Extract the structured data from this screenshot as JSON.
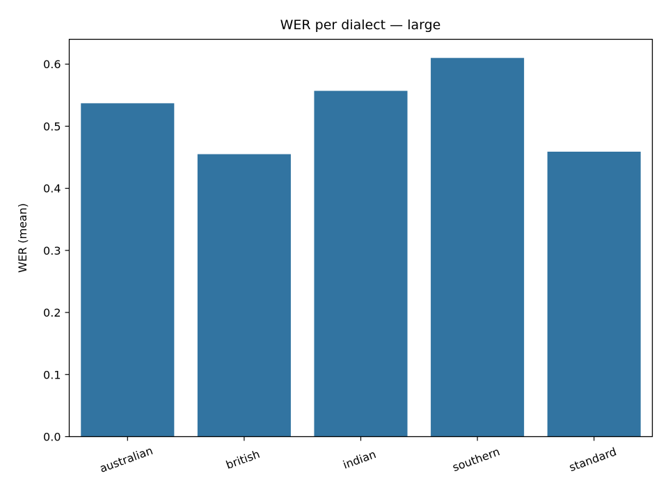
{
  "chart_data": {
    "type": "bar",
    "title": "WER per dialect — large",
    "xlabel": "",
    "ylabel": "WER (mean)",
    "categories": [
      "australian",
      "british",
      "indian",
      "southern",
      "standard"
    ],
    "values": [
      0.537,
      0.455,
      0.557,
      0.61,
      0.459
    ],
    "ylim": [
      0,
      0.64
    ],
    "yticks": [
      0.0,
      0.1,
      0.2,
      0.3,
      0.4,
      0.5,
      0.6
    ],
    "ytick_labels": [
      "0.0",
      "0.1",
      "0.2",
      "0.3",
      "0.4",
      "0.5",
      "0.6"
    ],
    "grid": false,
    "legend": "none",
    "bar_color": "#3274a1",
    "xtick_rotation_deg": -20
  }
}
